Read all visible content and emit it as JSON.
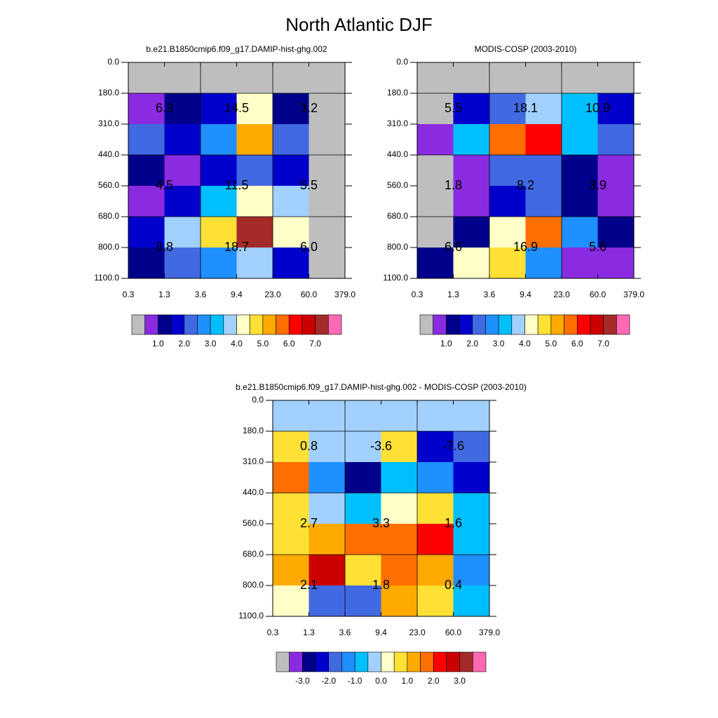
{
  "title": "North Atlantic DJF",
  "chart_data": [
    {
      "type": "heatmap",
      "title": "b.e21.B1850cmip6.f09_g17.DAMIP-hist-ghg.002",
      "x_edges": [
        0.3,
        1.3,
        3.6,
        9.4,
        {
          "value": 23,
          "label": "23.0"
        },
        {
          "value": 60,
          "label": "60.0"
        },
        {
          "value": 379,
          "label": "379.0"
        }
      ],
      "y_edges": [
        {
          "value": 0,
          "label": "0.0"
        },
        {
          "value": 180,
          "label": "180.0"
        },
        {
          "value": 310,
          "label": "310.0"
        },
        {
          "value": 440,
          "label": "440.0"
        },
        {
          "value": 560,
          "label": "560.0"
        },
        {
          "value": 680,
          "label": "680.0"
        },
        {
          "value": 800,
          "label": "800.0"
        },
        {
          "value": 1100,
          "label": "1100.0"
        }
      ],
      "values": [
        [
          0,
          0,
          0,
          0,
          0,
          0
        ],
        [
          0.75,
          1.25,
          1.75,
          4.25,
          1.25,
          0
        ],
        [
          2.25,
          1.75,
          2.75,
          5.25,
          2.25,
          0
        ],
        [
          1.25,
          0.75,
          1.75,
          2.25,
          1.75,
          0
        ],
        [
          0.75,
          1.75,
          3.25,
          4.25,
          3.75,
          0
        ],
        [
          1.75,
          3.75,
          4.75,
          7.25,
          4.25,
          0
        ],
        [
          1.25,
          2.25,
          2.75,
          3.75,
          1.75,
          0
        ]
      ],
      "annotations": [
        [
          6.3,
          14.5,
          3.2
        ],
        [
          4.5,
          11.5,
          5.5
        ],
        [
          8.8,
          18.7,
          6
        ]
      ],
      "annotation_labels": [
        [
          "6.3",
          "14.5",
          "3.2"
        ],
        [
          "4.5",
          "11.5",
          "5.5"
        ],
        [
          "8.8",
          "18.7",
          "6.0"
        ]
      ],
      "colors": [
        "#bebebe",
        "#8a2be2",
        "#00008b",
        "#0000cd",
        "#4169e1",
        "#1e90ff",
        "#00bfff",
        "#a2d0ff",
        "#ffffc8",
        "#ffe135",
        "#ffaa00",
        "#ff6e00",
        "#ff0000",
        "#cd0000",
        "#a52a2a",
        "#ff69b4"
      ],
      "levels": [
        0.5,
        1,
        1.5,
        2,
        2.5,
        3,
        3.5,
        4,
        4.5,
        5,
        5.5,
        6,
        6.5,
        7,
        7.5
      ],
      "colorbar_ticks": [
        {
          "value": 1,
          "label": "1.0"
        },
        {
          "value": 2,
          "label": "2.0"
        },
        {
          "value": 3,
          "label": "3.0"
        },
        {
          "value": 4,
          "label": "4.0"
        },
        {
          "value": 5,
          "label": "5.0"
        },
        {
          "value": 6,
          "label": "6.0"
        },
        {
          "value": 7,
          "label": "7.0"
        }
      ]
    },
    {
      "type": "heatmap",
      "title": "MODIS-COSP (2003-2010)",
      "x_edges": [
        0.3,
        1.3,
        3.6,
        9.4,
        {
          "value": 23,
          "label": "23.0"
        },
        {
          "value": 60,
          "label": "60.0"
        },
        {
          "value": 379,
          "label": "379.0"
        }
      ],
      "y_edges": [
        {
          "value": 0,
          "label": "0.0"
        },
        {
          "value": 180,
          "label": "180.0"
        },
        {
          "value": 310,
          "label": "310.0"
        },
        {
          "value": 440,
          "label": "440.0"
        },
        {
          "value": 560,
          "label": "560.0"
        },
        {
          "value": 680,
          "label": "680.0"
        },
        {
          "value": 800,
          "label": "800.0"
        },
        {
          "value": 1100,
          "label": "1100.0"
        }
      ],
      "values": [
        [
          0,
          0,
          0,
          0,
          0,
          0
        ],
        [
          0,
          1.75,
          2.25,
          3.75,
          3.25,
          1.75
        ],
        [
          0.75,
          3.25,
          5.75,
          6.25,
          3.25,
          2.25
        ],
        [
          0,
          0.75,
          2.25,
          2.25,
          1.25,
          0.75
        ],
        [
          0,
          0.75,
          1.75,
          2.25,
          1.25,
          0.75
        ],
        [
          0,
          1.25,
          4.25,
          5.75,
          2.75,
          1.25
        ],
        [
          1.25,
          4.25,
          4.75,
          2.75,
          0.75,
          0.75
        ]
      ],
      "annotations": [
        [
          5.5,
          18.1,
          10.9
        ],
        [
          1.8,
          8.2,
          3.9
        ],
        [
          6.6,
          16.9,
          5.6
        ]
      ],
      "colors": [
        "#bebebe",
        "#8a2be2",
        "#00008b",
        "#0000cd",
        "#4169e1",
        "#1e90ff",
        "#00bfff",
        "#a2d0ff",
        "#ffffc8",
        "#ffe135",
        "#ffaa00",
        "#ff6e00",
        "#ff0000",
        "#cd0000",
        "#a52a2a",
        "#ff69b4"
      ],
      "levels": [
        0.5,
        1,
        1.5,
        2,
        2.5,
        3,
        3.5,
        4,
        4.5,
        5,
        5.5,
        6,
        6.5,
        7,
        7.5
      ],
      "colorbar_ticks": [
        {
          "value": 1,
          "label": "1.0"
        },
        {
          "value": 2,
          "label": "2.0"
        },
        {
          "value": 3,
          "label": "3.0"
        },
        {
          "value": 4,
          "label": "4.0"
        },
        {
          "value": 5,
          "label": "5.0"
        },
        {
          "value": 6,
          "label": "6.0"
        },
        {
          "value": 7,
          "label": "7.0"
        }
      ]
    },
    {
      "type": "heatmap",
      "title": "b.e21.B1850cmip6.f09_g17.DAMIP-hist-ghg.002 - MODIS-COSP (2003-2010)",
      "x_edges": [
        0.3,
        1.3,
        3.6,
        9.4,
        {
          "value": 23,
          "label": "23.0"
        },
        {
          "value": 60,
          "label": "60.0"
        },
        {
          "value": 379,
          "label": "379.0"
        }
      ],
      "y_edges": [
        {
          "value": 0,
          "label": "0.0"
        },
        {
          "value": 180,
          "label": "180.0"
        },
        {
          "value": 310,
          "label": "310.0"
        },
        {
          "value": 440,
          "label": "440.0"
        },
        {
          "value": 560,
          "label": "560.0"
        },
        {
          "value": 680,
          "label": "680.0"
        },
        {
          "value": 800,
          "label": "800.0"
        },
        {
          "value": 1100,
          "label": "1100.0"
        }
      ],
      "values": [
        [
          -0.25,
          -0.25,
          -0.25,
          -0.25,
          -0.25,
          -0.25
        ],
        [
          0.75,
          -0.25,
          -0.25,
          0.75,
          -2.25,
          -1.75
        ],
        [
          1.75,
          -1.25,
          -2.75,
          -0.75,
          -1.25,
          -2.25
        ],
        [
          0.75,
          -0.25,
          -0.75,
          0.25,
          0.75,
          -0.75
        ],
        [
          0.75,
          1.25,
          1.75,
          1.75,
          2.25,
          -0.75
        ],
        [
          1.25,
          2.75,
          0.75,
          1.75,
          1.25,
          -1.25
        ],
        [
          0.25,
          -1.75,
          -1.75,
          1.25,
          0.75,
          -0.75
        ]
      ],
      "annotations": [
        [
          0.8,
          -3.6,
          -7.6
        ],
        [
          2.7,
          3.3,
          1.6
        ],
        [
          2.1,
          1.8,
          0.4
        ]
      ],
      "colors": [
        "#bebebe",
        "#8a2be2",
        "#00008b",
        "#0000cd",
        "#4169e1",
        "#1e90ff",
        "#00bfff",
        "#a2d0ff",
        "#ffffc8",
        "#ffe135",
        "#ffaa00",
        "#ff6e00",
        "#ff0000",
        "#cd0000",
        "#a52a2a",
        "#ff69b4"
      ],
      "levels": [
        -3.5,
        -3,
        -2.5,
        -2,
        -1.5,
        -1,
        -0.5,
        0,
        0.5,
        1,
        1.5,
        2,
        2.5,
        3,
        3.5
      ],
      "colorbar_ticks": [
        {
          "value": -3,
          "label": "-3.0"
        },
        {
          "value": -2,
          "label": "-2.0"
        },
        {
          "value": -1,
          "label": "-1.0"
        },
        {
          "value": 0,
          "label": "0.0"
        },
        {
          "value": 1,
          "label": "1.0"
        },
        {
          "value": 2,
          "label": "2.0"
        },
        {
          "value": 3,
          "label": "3.0"
        }
      ]
    }
  ]
}
